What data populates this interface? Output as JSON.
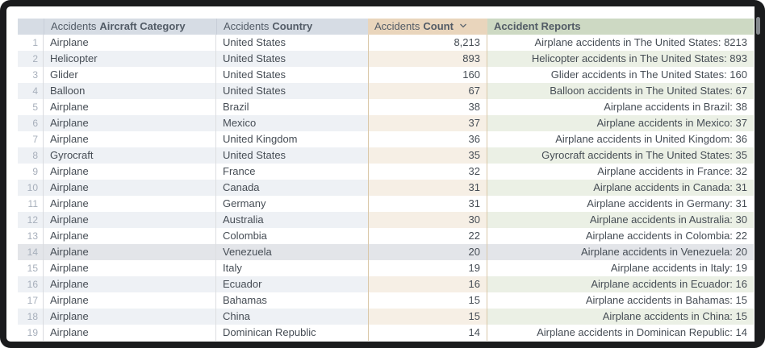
{
  "table": {
    "columns": {
      "row_number": {
        "label": ""
      },
      "category": {
        "prefix": "Accidents",
        "label": "Aircraft Category"
      },
      "country": {
        "prefix": "Accidents",
        "label": "Country"
      },
      "count": {
        "prefix": "Accidents",
        "label": "Count",
        "sort_direction": "descending",
        "sort_icon": "chevron-down-icon"
      },
      "reports": {
        "label": "Accident Reports"
      }
    },
    "highlighted_row_number": 14,
    "rows": [
      {
        "n": 1,
        "category": "Airplane",
        "country": "United States",
        "count": "8,213",
        "report": "Airplane accidents in The United States: 8213"
      },
      {
        "n": 2,
        "category": "Helicopter",
        "country": "United States",
        "count": "893",
        "report": "Helicopter accidents in The United States: 893"
      },
      {
        "n": 3,
        "category": "Glider",
        "country": "United States",
        "count": "160",
        "report": "Glider accidents in The United States: 160"
      },
      {
        "n": 4,
        "category": "Balloon",
        "country": "United States",
        "count": "67",
        "report": "Balloon accidents in The United States: 67"
      },
      {
        "n": 5,
        "category": "Airplane",
        "country": "Brazil",
        "count": "38",
        "report": "Airplane accidents in Brazil: 38"
      },
      {
        "n": 6,
        "category": "Airplane",
        "country": "Mexico",
        "count": "37",
        "report": "Airplane accidents in Mexico: 37"
      },
      {
        "n": 7,
        "category": "Airplane",
        "country": "United Kingdom",
        "count": "36",
        "report": "Airplane accidents in United Kingdom: 36"
      },
      {
        "n": 8,
        "category": "Gyrocraft",
        "country": "United States",
        "count": "35",
        "report": "Gyrocraft accidents in The United States: 35"
      },
      {
        "n": 9,
        "category": "Airplane",
        "country": "France",
        "count": "32",
        "report": "Airplane accidents in France: 32"
      },
      {
        "n": 10,
        "category": "Airplane",
        "country": "Canada",
        "count": "31",
        "report": "Airplane accidents in Canada: 31"
      },
      {
        "n": 11,
        "category": "Airplane",
        "country": "Germany",
        "count": "31",
        "report": "Airplane accidents in Germany: 31"
      },
      {
        "n": 12,
        "category": "Airplane",
        "country": "Australia",
        "count": "30",
        "report": "Airplane accidents in Australia: 30"
      },
      {
        "n": 13,
        "category": "Airplane",
        "country": "Colombia",
        "count": "22",
        "report": "Airplane accidents in Colombia: 22"
      },
      {
        "n": 14,
        "category": "Airplane",
        "country": "Venezuela",
        "count": "20",
        "report": "Airplane accidents in Venezuela: 20"
      },
      {
        "n": 15,
        "category": "Airplane",
        "country": "Italy",
        "count": "19",
        "report": "Airplane accidents in Italy: 19"
      },
      {
        "n": 16,
        "category": "Airplane",
        "country": "Ecuador",
        "count": "16",
        "report": "Airplane accidents in Ecuador: 16"
      },
      {
        "n": 17,
        "category": "Airplane",
        "country": "Bahamas",
        "count": "15",
        "report": "Airplane accidents in Bahamas: 15"
      },
      {
        "n": 18,
        "category": "Airplane",
        "country": "China",
        "count": "15",
        "report": "Airplane accidents in China: 15"
      },
      {
        "n": 19,
        "category": "Airplane",
        "country": "Dominican Republic",
        "count": "14",
        "report": "Airplane accidents in Dominican Republic: 14"
      }
    ]
  },
  "colors": {
    "header_default_bg": "#d6dce4",
    "header_count_bg": "#e9d5bc",
    "header_reports_bg": "#cdd9c3",
    "stripe_default_bg": "#eef1f5",
    "stripe_count_bg": "#f6efe5",
    "stripe_reports_bg": "#ebf0e5",
    "highlight_row_bg": "#e3e5e9",
    "frame": "#1a1b1d",
    "body_text": "#464d55",
    "row_number_text": "#a7afbb"
  }
}
